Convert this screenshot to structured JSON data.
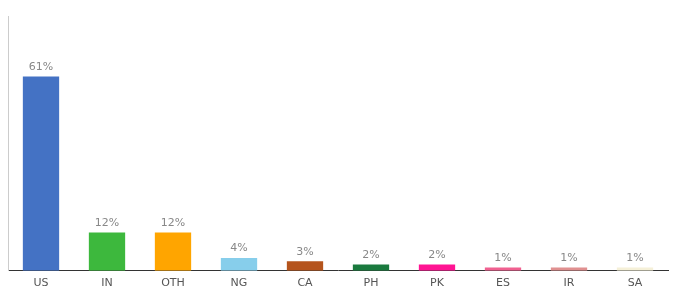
{
  "chart_data": {
    "type": "bar",
    "categories": [
      "US",
      "IN",
      "OTH",
      "NG",
      "CA",
      "PH",
      "PK",
      "ES",
      "IR",
      "SA"
    ],
    "values": [
      61,
      12,
      12,
      4,
      3,
      2,
      2,
      1,
      1,
      1
    ],
    "value_labels": [
      "61%",
      "12%",
      "12%",
      "4%",
      "3%",
      "2%",
      "2%",
      "1%",
      "1%",
      "1%"
    ],
    "colors": [
      "#4472c4",
      "#3db83d",
      "#ffa500",
      "#87ceeb",
      "#b5541c",
      "#1a7a3e",
      "#ff1493",
      "#f06090",
      "#e09090",
      "#f5f0d8"
    ],
    "ylim": [
      0,
      80
    ],
    "data_labels": true,
    "tick_labels": "x",
    "grid": false
  }
}
